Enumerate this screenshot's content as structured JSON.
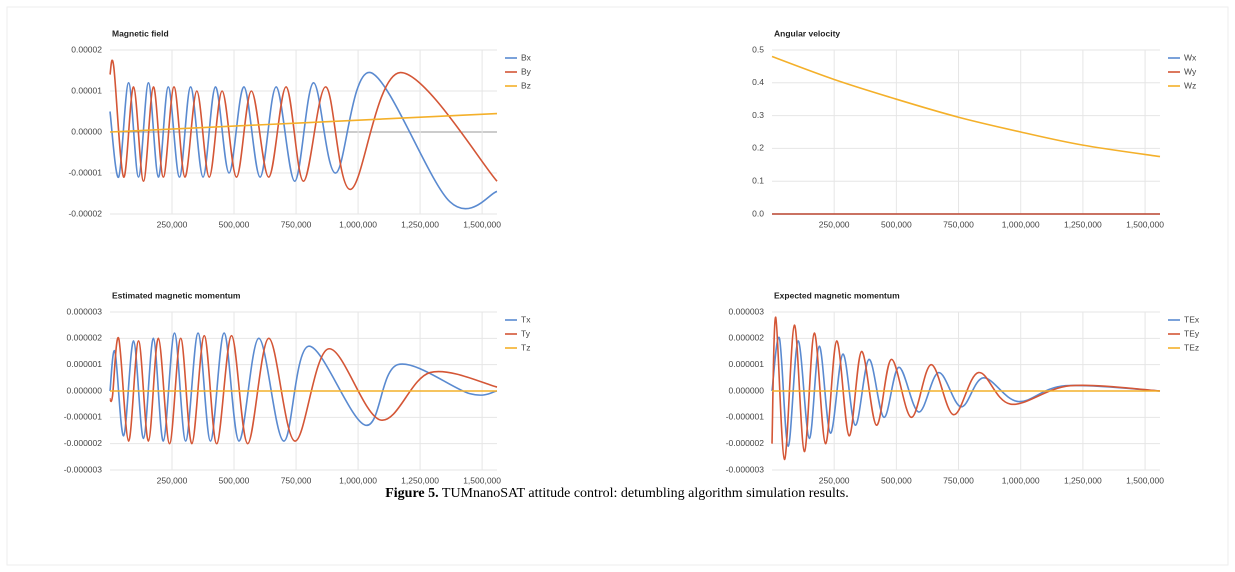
{
  "chart_data": [
    {
      "type": "line",
      "title": "Magnetic field",
      "xlim": [
        0,
        1560000
      ],
      "xticks": [
        {
          "value": 250000,
          "label": "250,000"
        },
        {
          "value": 500000,
          "label": "500,000"
        },
        {
          "value": 750000,
          "label": "750,000"
        },
        {
          "value": 1000000,
          "label": "1,000,000"
        },
        {
          "value": 1250000,
          "label": "1,250,000"
        },
        {
          "value": 1500000,
          "label": "1,500,000"
        }
      ],
      "ylim": [
        -2e-05,
        2e-05
      ],
      "yticks": [
        2e-05,
        1e-05,
        {
          "value": 0,
          "label": "0.00000"
        },
        -1e-05,
        -2e-05
      ],
      "grid": true,
      "series": [
        {
          "name": "Bx",
          "color": "#5a8ad0",
          "x": [
            0,
            35000,
            75000,
            115000,
            155000,
            195000,
            235000,
            280000,
            325000,
            375000,
            425000,
            480000,
            540000,
            605000,
            670000,
            745000,
            820000,
            910000,
            1050000,
            1370000,
            1560000
          ],
          "values": [
            5e-06,
            -1.1e-05,
            1.2e-05,
            -1.1e-05,
            1.2e-05,
            -1.1e-05,
            1.1e-05,
            -1.1e-05,
            1.1e-05,
            -1.1e-05,
            1.1e-05,
            -1e-05,
            1.1e-05,
            -1.1e-05,
            1.1e-05,
            -1.2e-05,
            1.2e-05,
            -1e-05,
            1.45e-05,
            -1.7e-05,
            -1.45e-05
          ]
        },
        {
          "name": "By",
          "color": "#d45636",
          "x": [
            0,
            15000,
            55000,
            95000,
            135000,
            175000,
            215000,
            258000,
            302000,
            350000,
            400000,
            452000,
            510000,
            570000,
            640000,
            710000,
            780000,
            870000,
            970000,
            1170000,
            1560000
          ],
          "values": [
            1.4e-05,
            1.6e-05,
            -1.1e-05,
            1.1e-05,
            -1.2e-05,
            1.1e-05,
            -1.1e-05,
            1.1e-05,
            -1.1e-05,
            1e-05,
            -1.1e-05,
            1e-05,
            -1.1e-05,
            1e-05,
            -1.1e-05,
            1.1e-05,
            -1.2e-05,
            1.1e-05,
            -1.4e-05,
            1.45e-05,
            -1.2e-05
          ]
        },
        {
          "name": "Bz",
          "color": "#f4b02a",
          "x": [
            0,
            1560000
          ],
          "values": [
            0,
            4.5e-06
          ]
        }
      ]
    },
    {
      "type": "line",
      "title": "Angular velocity",
      "xlim": [
        0,
        1560000
      ],
      "xticks": [
        {
          "value": 250000,
          "label": "250,000"
        },
        {
          "value": 500000,
          "label": "500,000"
        },
        {
          "value": 750000,
          "label": "750,000"
        },
        {
          "value": 1000000,
          "label": "1,000,000"
        },
        {
          "value": 1250000,
          "label": "1,250,000"
        },
        {
          "value": 1500000,
          "label": "1,500,000"
        }
      ],
      "ylim": [
        0,
        0.5
      ],
      "yticks": [
        0.5,
        0.4,
        0.3,
        0.2,
        0.1,
        {
          "value": 0,
          "label": "0.0"
        }
      ],
      "grid": true,
      "series": [
        {
          "name": "Wx",
          "color": "#5a8ad0",
          "x": [
            0,
            1560000
          ],
          "values": [
            0,
            0
          ]
        },
        {
          "name": "Wy",
          "color": "#d45636",
          "x": [
            0,
            1560000
          ],
          "values": [
            0,
            0
          ]
        },
        {
          "name": "Wz",
          "color": "#f4b02a",
          "x": [
            0,
            250000,
            500000,
            750000,
            1000000,
            1250000,
            1560000
          ],
          "values": [
            0.48,
            0.41,
            0.35,
            0.295,
            0.25,
            0.21,
            0.175
          ]
        }
      ]
    },
    {
      "type": "line",
      "title": "Estimated magnetic momentum",
      "xlim": [
        0,
        1560000
      ],
      "xticks": [
        {
          "value": 250000,
          "label": "250,000"
        },
        {
          "value": 500000,
          "label": "500,000"
        },
        {
          "value": 750000,
          "label": "750,000"
        },
        {
          "value": 1000000,
          "label": "1,000,000"
        },
        {
          "value": 1250000,
          "label": "1,250,000"
        },
        {
          "value": 1500000,
          "label": "1,500,000"
        }
      ],
      "ylim": [
        -3e-06,
        3e-06
      ],
      "yticks": [
        3e-06,
        2e-06,
        1e-06,
        {
          "value": 0,
          "label": "0.000000"
        },
        -1e-06,
        -2e-06,
        -3e-06
      ],
      "grid": true,
      "series": [
        {
          "name": "Tx",
          "color": "#5a8ad0",
          "x": [
            0,
            20000,
            55000,
            95000,
            135000,
            175000,
            215000,
            260000,
            305000,
            355000,
            405000,
            460000,
            520000,
            600000,
            700000,
            800000,
            1030000,
            1160000,
            1450000,
            1560000
          ],
          "values": [
            0,
            1.5e-06,
            -1.7e-06,
            1.9e-06,
            -1.8e-06,
            2e-06,
            -1.9e-06,
            2.2e-06,
            -1.9e-06,
            2.2e-06,
            -1.9e-06,
            2.2e-06,
            -1.9e-06,
            2e-06,
            -1.9e-06,
            1.7e-06,
            -1.3e-06,
            1e-06,
            -1e-07,
            0
          ]
        },
        {
          "name": "Ty",
          "color": "#d45636",
          "x": [
            0,
            10000,
            35000,
            75000,
            115000,
            155000,
            195000,
            240000,
            285000,
            330000,
            380000,
            430000,
            490000,
            555000,
            640000,
            745000,
            880000,
            1090000,
            1290000,
            1560000
          ],
          "values": [
            -3e-07,
            -2e-07,
            2e-06,
            -1.9e-06,
            1.9e-06,
            -1.9e-06,
            2e-06,
            -2e-06,
            2e-06,
            -2e-06,
            2.1e-06,
            -2e-06,
            2.1e-06,
            -2e-06,
            2e-06,
            -1.9e-06,
            1.6e-06,
            -1.1e-06,
            7e-07,
            1.5e-07
          ]
        },
        {
          "name": "Tz",
          "color": "#f4b02a",
          "x": [
            0,
            1560000
          ],
          "values": [
            0,
            0
          ]
        }
      ]
    },
    {
      "type": "line",
      "title": "Expected magnetic momentum",
      "xlim": [
        0,
        1560000
      ],
      "xticks": [
        {
          "value": 250000,
          "label": "250,000"
        },
        {
          "value": 500000,
          "label": "500,000"
        },
        {
          "value": 750000,
          "label": "750,000"
        },
        {
          "value": 1000000,
          "label": "1,000,000"
        },
        {
          "value": 1250000,
          "label": "1,250,000"
        },
        {
          "value": 1500000,
          "label": "1,500,000"
        }
      ],
      "ylim": [
        -3e-06,
        3e-06
      ],
      "yticks": [
        3e-06,
        2e-06,
        1e-06,
        {
          "value": 0,
          "label": "0.000000"
        },
        -1e-06,
        -2e-06,
        -3e-06
      ],
      "grid": true,
      "series": [
        {
          "name": "TEx",
          "color": "#5a8ad0",
          "x": [
            0,
            30000,
            65000,
            105000,
            150000,
            190000,
            235000,
            285000,
            335000,
            390000,
            450000,
            510000,
            590000,
            670000,
            760000,
            850000,
            990000,
            1180000,
            1560000
          ],
          "values": [
            0,
            2e-06,
            -2.1e-06,
            1.9e-06,
            -1.8e-06,
            1.7e-06,
            -1.6e-06,
            1.4e-06,
            -1.3e-06,
            1.2e-06,
            -1e-06,
            9e-07,
            -8e-07,
            7e-07,
            -6e-07,
            5e-07,
            -4e-07,
            2e-07,
            0
          ]
        },
        {
          "name": "TEy",
          "color": "#d45636",
          "x": [
            0,
            15000,
            50000,
            90000,
            130000,
            170000,
            215000,
            260000,
            310000,
            360000,
            420000,
            480000,
            560000,
            640000,
            730000,
            830000,
            960000,
            1200000,
            1560000
          ],
          "values": [
            -2e-06,
            2.8e-06,
            -2.6e-06,
            2.5e-06,
            -2.3e-06,
            2.2e-06,
            -2e-06,
            1.9e-06,
            -1.7e-06,
            1.5e-06,
            -1.3e-06,
            1.2e-06,
            -1e-06,
            1e-06,
            -9e-07,
            7e-07,
            -5e-07,
            2e-07,
            0
          ]
        },
        {
          "name": "TEz",
          "color": "#f4b02a",
          "x": [
            0,
            1560000
          ],
          "values": [
            0,
            0
          ]
        }
      ]
    }
  ],
  "caption": {
    "label": "Figure 5.",
    "text": "TUMnanoSAT attitude control: detumbling algorithm simulation results."
  }
}
